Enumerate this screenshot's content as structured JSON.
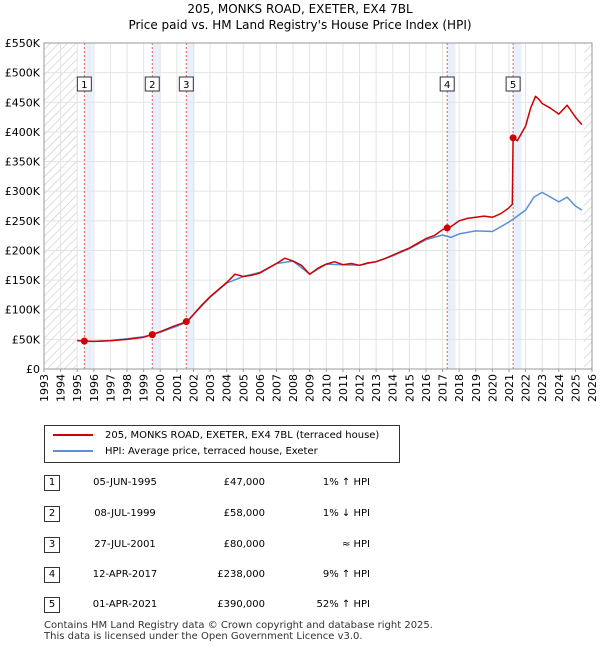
{
  "title": "205, MONKS ROAD, EXETER, EX4 7BL",
  "subtitle": "Price paid vs. HM Land Registry's House Price Index (HPI)",
  "colors": {
    "property": "#cc0000",
    "hpi": "#5b8fd4",
    "band": "#dce6f5",
    "marker_line": "#e06060"
  },
  "chart_data": {
    "type": "line",
    "xlim": [
      1993,
      2026
    ],
    "ylim": [
      0,
      550000
    ],
    "x_ticks": [
      "1993",
      "1994",
      "1995",
      "1996",
      "1997",
      "1998",
      "1999",
      "2000",
      "2001",
      "2002",
      "2003",
      "2004",
      "2005",
      "2006",
      "2007",
      "2008",
      "2009",
      "2010",
      "2011",
      "2012",
      "2013",
      "2014",
      "2015",
      "2016",
      "2017",
      "2018",
      "2019",
      "2020",
      "2021",
      "2022",
      "2023",
      "2024",
      "2025",
      "2026"
    ],
    "y_ticks": [
      {
        "value": 0,
        "label": "£0"
      },
      {
        "value": 50000,
        "label": "£50K"
      },
      {
        "value": 100000,
        "label": "£100K"
      },
      {
        "value": 150000,
        "label": "£150K"
      },
      {
        "value": 200000,
        "label": "£200K"
      },
      {
        "value": 250000,
        "label": "£250K"
      },
      {
        "value": 300000,
        "label": "£300K"
      },
      {
        "value": 350000,
        "label": "£350K"
      },
      {
        "value": 400000,
        "label": "£400K"
      },
      {
        "value": 450000,
        "label": "£450K"
      },
      {
        "value": 500000,
        "label": "£500K"
      },
      {
        "value": 550000,
        "label": "£550K"
      }
    ],
    "hatch_before": 1995.0,
    "hatch_after": 2025.5,
    "series": [
      {
        "name": "205, MONKS ROAD, EXETER, EX4 7BL (terraced house)",
        "points": [
          [
            1995.0,
            48000
          ],
          [
            1995.4,
            47000
          ],
          [
            1996,
            46500
          ],
          [
            1997,
            47500
          ],
          [
            1998,
            50000
          ],
          [
            1999,
            53500
          ],
          [
            1999.5,
            58000
          ],
          [
            2000,
            63000
          ],
          [
            2000.8,
            72000
          ],
          [
            2001.6,
            80000
          ],
          [
            2002,
            92000
          ],
          [
            2002.5,
            108000
          ],
          [
            2003,
            122000
          ],
          [
            2003.5,
            134000
          ],
          [
            2004,
            146000
          ],
          [
            2004.5,
            160000
          ],
          [
            2005,
            156000
          ],
          [
            2005.5,
            158000
          ],
          [
            2006,
            162000
          ],
          [
            2006.5,
            170000
          ],
          [
            2007,
            178000
          ],
          [
            2007.5,
            187000
          ],
          [
            2008,
            182000
          ],
          [
            2008.5,
            175000
          ],
          [
            2009,
            160000
          ],
          [
            2009.5,
            170000
          ],
          [
            2010,
            177000
          ],
          [
            2010.5,
            181000
          ],
          [
            2011,
            176000
          ],
          [
            2011.5,
            178000
          ],
          [
            2012,
            175000
          ],
          [
            2012.5,
            179000
          ],
          [
            2013,
            181000
          ],
          [
            2013.5,
            186000
          ],
          [
            2014,
            192000
          ],
          [
            2014.5,
            198000
          ],
          [
            2015,
            204000
          ],
          [
            2015.5,
            212000
          ],
          [
            2016,
            220000
          ],
          [
            2016.5,
            225000
          ],
          [
            2017,
            235000
          ],
          [
            2017.28,
            238000
          ],
          [
            2017.5,
            240000
          ],
          [
            2018,
            250000
          ],
          [
            2018.5,
            254000
          ],
          [
            2019,
            256000
          ],
          [
            2019.5,
            258000
          ],
          [
            2020,
            256000
          ],
          [
            2020.5,
            262000
          ],
          [
            2021,
            272000
          ],
          [
            2021.2,
            278000
          ],
          [
            2021.25,
            390000
          ],
          [
            2021.5,
            385000
          ],
          [
            2022,
            410000
          ],
          [
            2022.3,
            440000
          ],
          [
            2022.6,
            460000
          ],
          [
            2022.8,
            455000
          ],
          [
            2023,
            448000
          ],
          [
            2023.5,
            440000
          ],
          [
            2024,
            430000
          ],
          [
            2024.5,
            445000
          ],
          [
            2025,
            425000
          ],
          [
            2025.4,
            412000
          ]
        ]
      },
      {
        "name": "HPI: Average price, terraced house, Exeter",
        "points": [
          [
            1995.0,
            47500
          ],
          [
            1996,
            46500
          ],
          [
            1997,
            48000
          ],
          [
            1998,
            51000
          ],
          [
            1999,
            54500
          ],
          [
            2000,
            62000
          ],
          [
            2001,
            72000
          ],
          [
            2001.6,
            79000
          ],
          [
            2002,
            92000
          ],
          [
            2003,
            121000
          ],
          [
            2004,
            145000
          ],
          [
            2005,
            156000
          ],
          [
            2006,
            163000
          ],
          [
            2007,
            178000
          ],
          [
            2008,
            182000
          ],
          [
            2009,
            160000
          ],
          [
            2010,
            177000
          ],
          [
            2011,
            176000
          ],
          [
            2012,
            175000
          ],
          [
            2013,
            181000
          ],
          [
            2014,
            191000
          ],
          [
            2015,
            203000
          ],
          [
            2016,
            218000
          ],
          [
            2017,
            226000
          ],
          [
            2017.5,
            222000
          ],
          [
            2018,
            228000
          ],
          [
            2019,
            233000
          ],
          [
            2020,
            232000
          ],
          [
            2021,
            248000
          ],
          [
            2021.5,
            258000
          ],
          [
            2022,
            268000
          ],
          [
            2022.5,
            290000
          ],
          [
            2023,
            298000
          ],
          [
            2023.5,
            290000
          ],
          [
            2024,
            282000
          ],
          [
            2024.5,
            290000
          ],
          [
            2025,
            275000
          ],
          [
            2025.4,
            268000
          ]
        ]
      }
    ],
    "transactions": [
      {
        "num": "1",
        "x": 1995.43,
        "value": 47000
      },
      {
        "num": "2",
        "x": 1999.52,
        "value": 58000
      },
      {
        "num": "3",
        "x": 2001.57,
        "value": 80000
      },
      {
        "num": "4",
        "x": 2017.28,
        "value": 238000
      },
      {
        "num": "5",
        "x": 2021.25,
        "value": 390000
      }
    ]
  },
  "legend": {
    "property_label": "205, MONKS ROAD, EXETER, EX4 7BL (terraced house)",
    "hpi_label": "HPI: Average price, terraced house, Exeter"
  },
  "table": [
    {
      "num": "1",
      "date": "05-JUN-1995",
      "price": "£47,000",
      "hpi": "1% ↑ HPI"
    },
    {
      "num": "2",
      "date": "08-JUL-1999",
      "price": "£58,000",
      "hpi": "1% ↓ HPI"
    },
    {
      "num": "3",
      "date": "27-JUL-2001",
      "price": "£80,000",
      "hpi": "≈ HPI"
    },
    {
      "num": "4",
      "date": "12-APR-2017",
      "price": "£238,000",
      "hpi": "9% ↑ HPI"
    },
    {
      "num": "5",
      "date": "01-APR-2021",
      "price": "£390,000",
      "hpi": "52% ↑ HPI"
    }
  ],
  "footer": {
    "line1": "Contains HM Land Registry data © Crown copyright and database right 2025.",
    "line2": "This data is licensed under the Open Government Licence v3.0."
  }
}
